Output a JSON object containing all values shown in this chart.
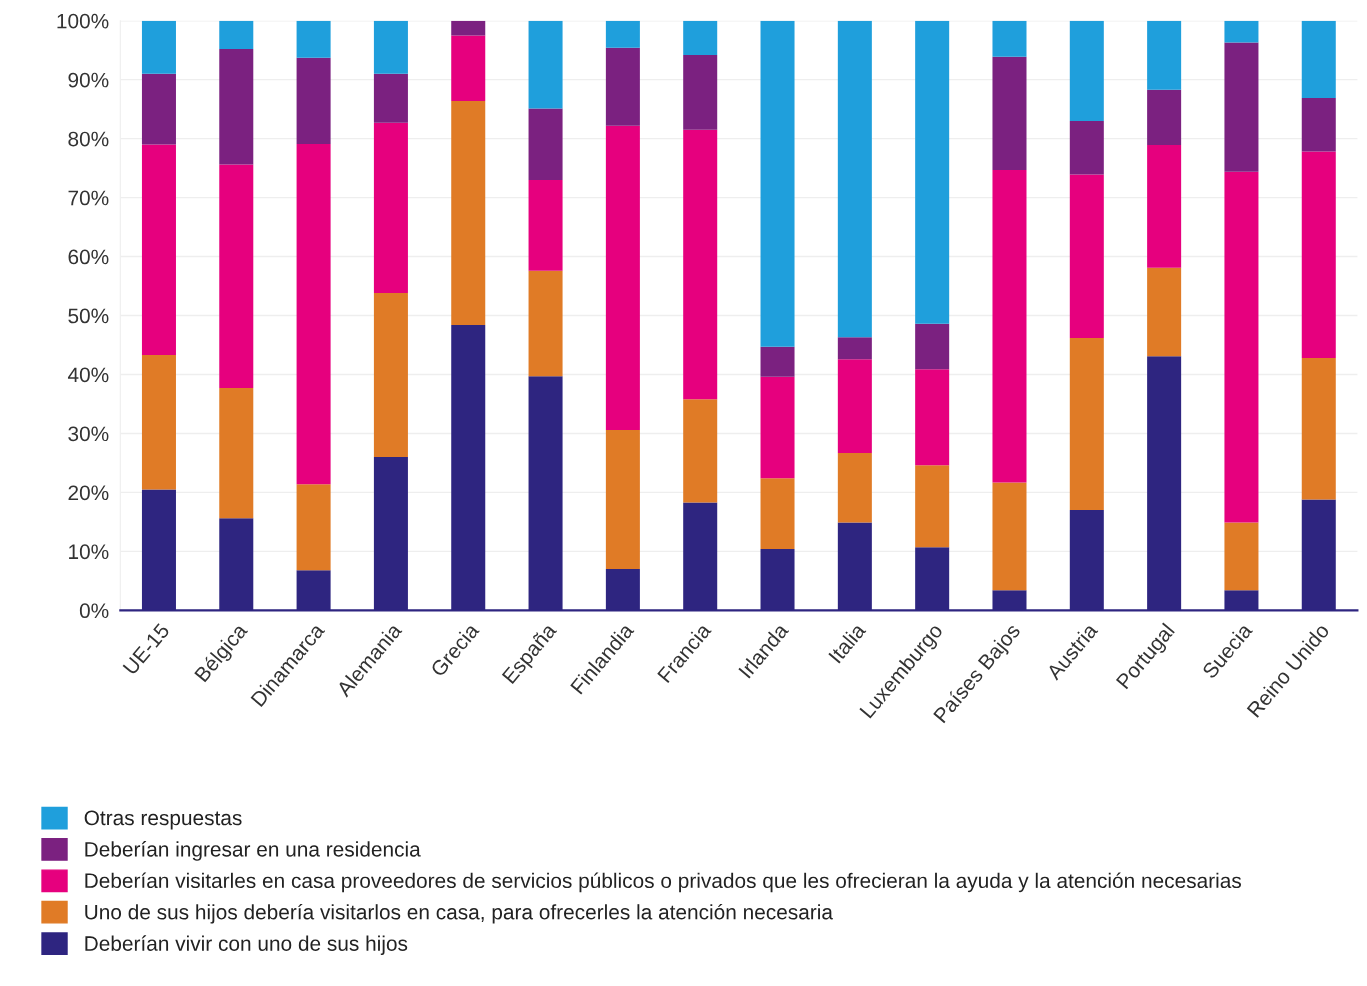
{
  "chart_data": {
    "type": "bar",
    "stacked": true,
    "categories": [
      "UE-15",
      "Bélgica",
      "Dinamarca",
      "Alemania",
      "Grecia",
      "España",
      "Finlandia",
      "Francia",
      "Irlanda",
      "Italia",
      "Luxemburgo",
      "Países Bajos",
      "Austria",
      "Portugal",
      "Suecia",
      "Reino Unido"
    ],
    "series": [
      {
        "name": "Deberían vivir con uno de sus hijos",
        "color": "#2e2580",
        "values": [
          20.5,
          15.6,
          6.8,
          26,
          48.4,
          39.7,
          7,
          18.3,
          10.4,
          14.9,
          10.7,
          3.4,
          17,
          43.1,
          3.4,
          18.8
        ]
      },
      {
        "name": "Uno de sus hijos debería visitarlos en casa, para ofrecerles la atención necesaria",
        "color": "#e07b26",
        "values": [
          22.8,
          22.1,
          14.6,
          27.8,
          38,
          17.9,
          23.6,
          17.5,
          12,
          11.8,
          13.9,
          18.3,
          29.2,
          15,
          11.5,
          24
        ]
      },
      {
        "name": "Deberían visitarles en casa proveedores de servicios públicos o privados que les ofrecieran la ayuda y la atención necesarias",
        "color": "#e6007e",
        "values": [
          35.7,
          37.9,
          57.7,
          28.9,
          11.1,
          15.4,
          51.6,
          45.7,
          17.2,
          15.9,
          16.3,
          53,
          27.7,
          20.8,
          59.5,
          35
        ]
      },
      {
        "name": "Deberían ingresar en una residencia",
        "color": "#7b2180",
        "values": [
          12,
          19.6,
          14.6,
          8.3,
          2.5,
          12.1,
          13.2,
          12.7,
          5.1,
          3.7,
          7.7,
          19.2,
          9.1,
          9.4,
          21.9,
          9.1
        ]
      },
      {
        "name": "Otras respuestas",
        "color": "#1f9fdc",
        "values": [
          9,
          4.8,
          6.3,
          9,
          0,
          14.9,
          4.6,
          5.8,
          55.3,
          53.7,
          51.4,
          6.1,
          17,
          11.7,
          3.7,
          13.1
        ]
      }
    ],
    "ylim": [
      0,
      100
    ],
    "yticks": [
      {
        "value": 0,
        "label": "0%"
      },
      {
        "value": 10,
        "label": "10%"
      },
      {
        "value": 20,
        "label": "20%"
      },
      {
        "value": 30,
        "label": "30%"
      },
      {
        "value": 40,
        "label": "40%"
      },
      {
        "value": 50,
        "label": "50%"
      },
      {
        "value": 60,
        "label": "60%"
      },
      {
        "value": 70,
        "label": "70%"
      },
      {
        "value": 80,
        "label": "80%"
      },
      {
        "value": 90,
        "label": "90%"
      },
      {
        "value": 100,
        "label": "100%"
      }
    ],
    "grid": "y",
    "legend": "bottom"
  }
}
